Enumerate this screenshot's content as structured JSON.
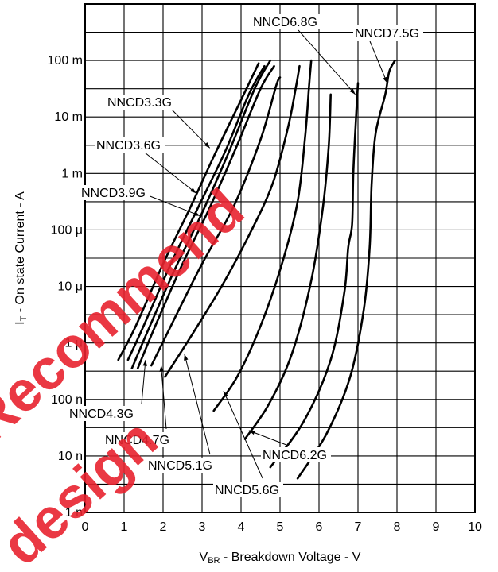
{
  "chart_data": {
    "type": "line",
    "xlabel": {
      "prefix": "V",
      "sub": "BR",
      "rest": " -  Breakdown Voltage  - V"
    },
    "ylabel": {
      "prefix": "I",
      "sub": "T",
      "rest": " -  On state Current  - A"
    },
    "xlim": [
      0,
      10
    ],
    "ylim_log10": [
      -9,
      0
    ],
    "y_scale": "log",
    "grid": true,
    "x_ticks": [
      "0",
      "1",
      "2",
      "3",
      "4",
      "5",
      "6",
      "7",
      "8",
      "9",
      "10"
    ],
    "y_ticks": [
      {
        "exp": -9,
        "label": "1 n"
      },
      {
        "exp": -8,
        "label": "10 n"
      },
      {
        "exp": -7,
        "label": "100 n"
      },
      {
        "exp": -6,
        "label": "1 μ"
      },
      {
        "exp": -5,
        "label": "10 μ"
      },
      {
        "exp": -4,
        "label": "100 μ"
      },
      {
        "exp": -3,
        "label": "1 m"
      },
      {
        "exp": -2,
        "label": "10 m"
      },
      {
        "exp": -1,
        "label": "100 m"
      }
    ],
    "series": [
      {
        "name": "NNCD3.3G",
        "points": [
          [
            0.85,
            -6.3
          ],
          [
            1.3,
            -5.7
          ],
          [
            2.0,
            -4.6
          ],
          [
            2.7,
            -3.6
          ],
          [
            3.3,
            -2.7
          ],
          [
            4.0,
            -1.7
          ],
          [
            4.45,
            -1.05
          ]
        ],
        "label_pos": [
          3.3,
          -2.6
        ]
      },
      {
        "name": "NNCD3.6G",
        "points": [
          [
            1.1,
            -6.3
          ],
          [
            1.5,
            -5.7
          ],
          [
            2.2,
            -4.6
          ],
          [
            2.9,
            -3.6
          ],
          [
            3.6,
            -2.6
          ],
          [
            4.2,
            -1.6
          ],
          [
            4.6,
            -1.1
          ]
        ],
        "label_pos": [
          2.85,
          -3.3
        ]
      },
      {
        "name": "NNCD3.9G",
        "points": [
          [
            1.2,
            -6.45
          ],
          [
            1.6,
            -5.8
          ],
          [
            2.3,
            -4.7
          ],
          [
            3.0,
            -3.7
          ],
          [
            3.7,
            -2.6
          ],
          [
            4.35,
            -1.5
          ],
          [
            4.75,
            -1.0
          ]
        ],
        "label_pos": [
          2.75,
          -3.75
        ]
      },
      {
        "name": "NNCD4.3G",
        "points": [
          [
            1.35,
            -6.45
          ],
          [
            1.8,
            -5.7
          ],
          [
            2.5,
            -4.6
          ],
          [
            3.2,
            -3.6
          ],
          [
            3.9,
            -2.5
          ],
          [
            4.5,
            -1.5
          ],
          [
            4.85,
            -1.1
          ]
        ],
        "label_pos": [
          1.5,
          -6.5
        ]
      },
      {
        "name": "NNCD4.7G",
        "points": [
          [
            1.7,
            -6.4
          ],
          [
            2.2,
            -5.7
          ],
          [
            3.0,
            -4.6
          ],
          [
            3.8,
            -3.6
          ],
          [
            4.5,
            -2.4
          ],
          [
            4.9,
            -1.45
          ],
          [
            5.0,
            -1.3
          ]
        ],
        "label_pos": [
          1.95,
          -6.55
        ]
      },
      {
        "name": "NNCD5.1G",
        "points": [
          [
            2.05,
            -6.6
          ],
          [
            2.7,
            -5.9
          ],
          [
            3.5,
            -5.0
          ],
          [
            4.2,
            -4.1
          ],
          [
            4.8,
            -3.2
          ],
          [
            5.2,
            -2.2
          ],
          [
            5.4,
            -1.5
          ],
          [
            5.5,
            -1.1
          ]
        ],
        "label_pos": [
          2.55,
          -6.3
        ]
      },
      {
        "name": "NNCD5.6G",
        "points": [
          [
            3.3,
            -7.2
          ],
          [
            3.9,
            -6.6
          ],
          [
            4.5,
            -5.7
          ],
          [
            5.05,
            -4.6
          ],
          [
            5.45,
            -3.5
          ],
          [
            5.65,
            -2.3
          ],
          [
            5.75,
            -1.4
          ],
          [
            5.8,
            -1.0
          ]
        ],
        "label_pos": [
          3.6,
          -6.9
        ]
      },
      {
        "name": "NNCD6.2G",
        "points": [
          [
            4.1,
            -7.7
          ],
          [
            4.7,
            -7.1
          ],
          [
            5.3,
            -6.2
          ],
          [
            5.8,
            -4.9
          ],
          [
            6.1,
            -3.6
          ],
          [
            6.25,
            -2.5
          ],
          [
            6.3,
            -1.6
          ]
        ],
        "label_pos": [
          4.2,
          -7.5
        ]
      },
      {
        "name": "NNCD6.8G",
        "points": [
          [
            4.75,
            -8.2
          ],
          [
            5.6,
            -7.4
          ],
          [
            6.3,
            -6.3
          ],
          [
            6.65,
            -5.1
          ],
          [
            6.75,
            -4.3
          ],
          [
            6.85,
            -3.9
          ],
          [
            6.88,
            -3.0
          ],
          [
            6.95,
            -2.0
          ],
          [
            7.0,
            -1.4
          ]
        ],
        "label_pos": [
          7.05,
          -1.65
        ]
      },
      {
        "name": "NNCD7.5G",
        "points": [
          [
            5.45,
            -8.4
          ],
          [
            6.2,
            -7.6
          ],
          [
            6.8,
            -6.6
          ],
          [
            7.15,
            -5.4
          ],
          [
            7.3,
            -4.3
          ],
          [
            7.35,
            -3.2
          ],
          [
            7.45,
            -2.3
          ],
          [
            7.7,
            -1.6
          ],
          [
            7.8,
            -1.2
          ],
          [
            7.95,
            -1.0
          ]
        ],
        "label_pos": [
          7.7,
          -1.5
        ]
      }
    ],
    "annotations": [
      {
        "name": "NNCD6.8G",
        "text": "NNCD6.8G"
      },
      {
        "name": "NNCD7.5G",
        "text": "NNCD7.5G"
      },
      {
        "name": "NNCD3.3G",
        "text": "NNCD3.3G"
      },
      {
        "name": "NNCD3.6G",
        "text": "NNCD3.6G"
      },
      {
        "name": "NNCD3.9G",
        "text": "NNCD3.9G"
      },
      {
        "name": "NNCD4.3G",
        "text": "NNCD4.3G"
      },
      {
        "name": "NNCD4.7G",
        "text": "NNCD4.7G"
      },
      {
        "name": "NNCD5.1G",
        "text": "NNCD5.1G"
      },
      {
        "name": "NNCD5.6G",
        "text": "NNCD5.6G"
      },
      {
        "name": "NNCD6.2G",
        "text": "NNCD6.2G"
      }
    ]
  },
  "watermark": {
    "lines": [
      "Recommend",
      "design"
    ],
    "color": "#e8232f"
  }
}
